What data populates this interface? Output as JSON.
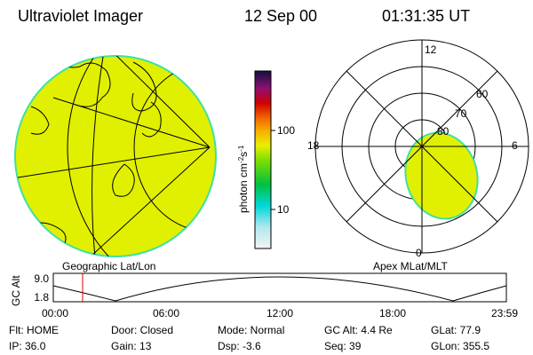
{
  "header": {
    "title": "Ultraviolet Imager",
    "date": "12 Sep 00",
    "time": "01:31:35 UT"
  },
  "colorbar": {
    "label": [
      "photon cm",
      "-2",
      "s",
      "-1"
    ],
    "ticks": [
      "100",
      "10"
    ]
  },
  "map": {
    "label": "Geographic Lat/Lon"
  },
  "polar": {
    "label": "Apex MLat/MLT",
    "hour_labels": [
      "12",
      "18",
      "6",
      "0"
    ],
    "lat_labels": [
      "60",
      "70",
      "80"
    ]
  },
  "timeline": {
    "axis_label": "GC Alt",
    "y_labels": [
      "9.0",
      "1.8"
    ],
    "x_labels": [
      "00:00",
      "06:00",
      "12:00",
      "18:00",
      "23:59"
    ]
  },
  "status": {
    "rows": [
      [
        "Flt: HOME",
        "Door: Closed",
        "Mode: Normal",
        "GC Alt: 4.4 Re",
        "GLat: 77.9"
      ],
      [
        "IP: 36.0",
        "Gain: 13",
        "Dsp: -3.6",
        "Seq: 39",
        "GLon: 355.5"
      ]
    ]
  }
}
